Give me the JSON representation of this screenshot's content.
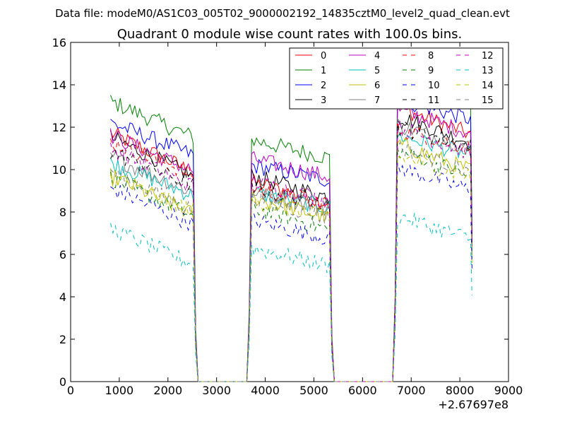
{
  "suptitle": "Data file: modeM0/AS1C03_005T02_9000002192_14835cztM0_level2_quad_clean.evt",
  "chart_data": {
    "type": "line",
    "title": "Quadrant 0 module wise count rates with 100.0s bins.",
    "xlabel": "",
    "ylabel": "",
    "xlim": [
      0,
      9000
    ],
    "ylim": [
      0,
      16
    ],
    "x_ticks": [
      0,
      1000,
      2000,
      3000,
      4000,
      5000,
      6000,
      7000,
      8000,
      9000
    ],
    "x_tick_labels": [
      "0",
      "1000",
      "2000",
      "3000",
      "4000",
      "5000",
      "6000",
      "7000",
      "8000",
      "9000"
    ],
    "y_ticks": [
      0,
      2,
      4,
      6,
      8,
      10,
      12,
      14,
      16
    ],
    "y_tick_labels": [
      "0",
      "2",
      "4",
      "6",
      "8",
      "10",
      "12",
      "14",
      "16"
    ],
    "x_offset_label": "+2.67697e8",
    "legend_position": "top-right",
    "segments": [
      {
        "start": 820,
        "end": 2520,
        "ramp_to": 2600
      },
      {
        "start": 3720,
        "end": 5320,
        "ramp_from": 3620,
        "ramp_to": 5400
      },
      {
        "start": 6720,
        "end": 8220,
        "ramp_from": 6620
      }
    ],
    "x_zero": [
      2650,
      3500,
      5500,
      6500
    ],
    "series": [
      {
        "name": "0",
        "color": "#ff0000",
        "style": "solid",
        "levels": [
          11.0,
          9.1,
          12.5
        ]
      },
      {
        "name": "1",
        "color": "#008000",
        "style": "solid",
        "levels": [
          12.5,
          11.1,
          13.8
        ]
      },
      {
        "name": "2",
        "color": "#0000ff",
        "style": "solid",
        "levels": [
          11.5,
          9.9,
          12.9
        ]
      },
      {
        "name": "3",
        "color": "#000000",
        "style": "solid",
        "levels": [
          10.8,
          9.4,
          12.1
        ]
      },
      {
        "name": "4",
        "color": "#bf00bf",
        "style": "solid",
        "levels": [
          10.9,
          10.2,
          12.4
        ]
      },
      {
        "name": "5",
        "color": "#00bfbf",
        "style": "solid",
        "levels": [
          9.6,
          8.6,
          11.2
        ]
      },
      {
        "name": "6",
        "color": "#bfbf00",
        "style": "solid",
        "levels": [
          9.0,
          8.4,
          10.8
        ]
      },
      {
        "name": "7",
        "color": "#808080",
        "style": "solid",
        "levels": [
          9.9,
          8.7,
          11.7
        ]
      },
      {
        "name": "8",
        "color": "#ff0000",
        "style": "dashed",
        "levels": [
          10.6,
          8.8,
          11.5
        ]
      },
      {
        "name": "9",
        "color": "#008000",
        "style": "dashed",
        "levels": [
          8.9,
          7.9,
          10.5
        ]
      },
      {
        "name": "10",
        "color": "#0000ff",
        "style": "dashed",
        "levels": [
          8.4,
          7.3,
          9.7
        ]
      },
      {
        "name": "11",
        "color": "#000000",
        "style": "dashed",
        "levels": [
          10.1,
          8.8,
          11.6
        ]
      },
      {
        "name": "12",
        "color": "#bf00bf",
        "style": "dashed",
        "levels": [
          10.3,
          9.2,
          11.6
        ]
      },
      {
        "name": "13",
        "color": "#00bfbf",
        "style": "dashed",
        "levels": [
          6.5,
          6.0,
          7.4
        ]
      },
      {
        "name": "14",
        "color": "#bfbf00",
        "style": "dashed",
        "levels": [
          8.9,
          8.2,
          10.2
        ]
      },
      {
        "name": "15",
        "color": "#808080",
        "style": "dashed",
        "levels": [
          9.2,
          8.4,
          10.7
        ]
      }
    ]
  }
}
